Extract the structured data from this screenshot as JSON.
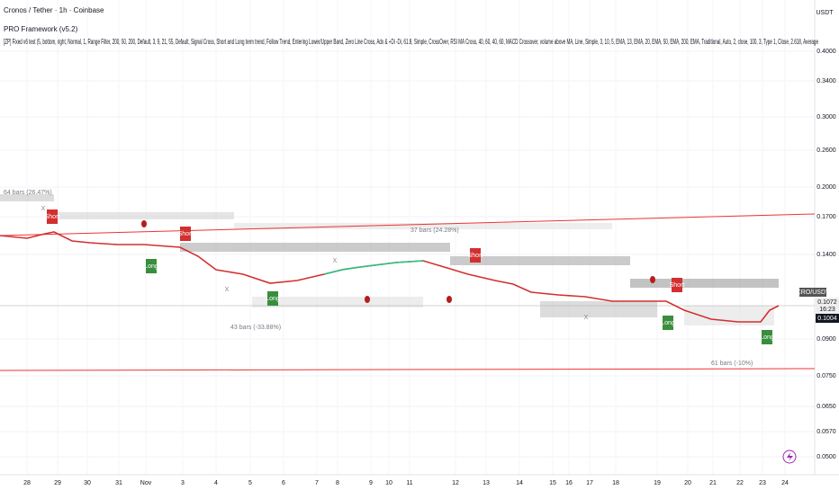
{
  "header": {
    "title": "Cronos / Tether · 1h · Coinbase",
    "indicator_1": "PRO Framework (v5.2)",
    "indicator_2": "[ZP] Fixed v6 test (5, bottom, right, Normal, 1, Range Filter, 200, 50, 200, Default, 3, 9, 21, 55, Default, Signal Cross, Short and Long term trend, Follow Trend, Entering Lower/Upper Band, Zero Line Cross, Adx & +Di -Di, 61.8, Simple, CrossOver, RSI MA Cross, 40, 60, 40, 60, MACD Crossover, volume above MA, Line, Simple, 3, 10, 5, EMA, 13, EMA, 20, EMA, 50, EMA, 200, EMA, Traditional, Auto, 2, close, 100, 3, Type 1, Close, 2.618, Average"
  },
  "price_axis": {
    "currency": "USDT",
    "labels": [
      "0.4000",
      "0.3400",
      "0.3000",
      "0.2600",
      "0.2000",
      "0.1700",
      "0.1400",
      "0.0900",
      "0.0750",
      "0.0650",
      "0.0570",
      "0.0500"
    ],
    "symbol_tag": "CRO/USDT",
    "last_price": "0.1072",
    "countdown": "16:23",
    "cursor_price": "0.1004"
  },
  "time_axis": {
    "labels": [
      "28",
      "29",
      "30",
      "31",
      "Nov",
      "3",
      "4",
      "5",
      "6",
      "7",
      "8",
      "9",
      "10",
      "11",
      "12",
      "13",
      "14",
      "15",
      "16",
      "17",
      "18",
      "19",
      "20",
      "21",
      "22",
      "23",
      "24"
    ]
  },
  "measurements": [
    "64 bars (26.47%)",
    "37 bars (24.28%)",
    "43 bars (-33.88%)",
    "61 bars (-10%)"
  ],
  "signals": [
    "Short",
    "Short",
    "Short",
    "Short",
    "Long",
    "Long",
    "Long",
    "Long"
  ],
  "cross_marks": [
    "X",
    "X",
    "X",
    "X"
  ]
}
